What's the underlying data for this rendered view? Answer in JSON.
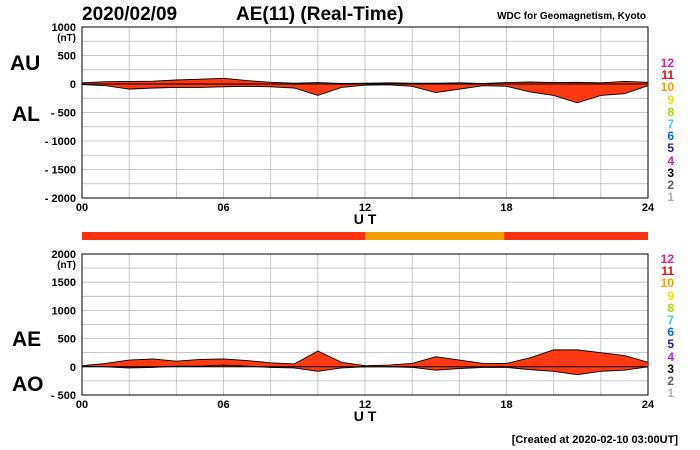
{
  "header": {
    "date": "2020/02/09",
    "title": "AE(11) (Real-Time)",
    "source": "WDC for Geomagnetism, Kyoto"
  },
  "footer": {
    "created": "[Created at 2020-02-10 03:00UT]"
  },
  "activity_levels": {
    "labels": [
      "12",
      "11",
      "10",
      "9",
      "8",
      "7",
      "6",
      "5",
      "4",
      "3",
      "2",
      "1"
    ],
    "colors": [
      "#e01fa0",
      "#e01010",
      "#f5a000",
      "#f0e000",
      "#a0e000",
      "#40d0e0",
      "#1060ff",
      "#2020a0",
      "#c020d0",
      "#000000",
      "#606060",
      "#b0b0b0"
    ]
  },
  "coverage_bar": {
    "segments": [
      {
        "from": 0,
        "to": 12,
        "color": "#ff3010"
      },
      {
        "from": 12,
        "to": 17.9,
        "color": "#f5a000"
      },
      {
        "from": 17.9,
        "to": 24,
        "color": "#ff3010"
      }
    ]
  },
  "chart_data": [
    {
      "type": "area",
      "xlabel": "U T",
      "ylabel": "(nT)",
      "side_labels": [
        "AU",
        "AL"
      ],
      "xlim": [
        0,
        24
      ],
      "ylim": [
        -2000,
        1000
      ],
      "xticks": [
        "00",
        "06",
        "12",
        "18",
        "24"
      ],
      "yticks": [
        "1000",
        "500",
        "0",
        "- 500",
        "- 1000",
        "- 1500",
        "- 2000"
      ],
      "grid": true,
      "series": [
        {
          "name": "AU",
          "x": [
            0,
            1,
            2,
            3,
            4,
            5,
            6,
            7,
            8,
            9,
            10,
            11,
            12,
            13,
            14,
            15,
            16,
            17,
            18,
            19,
            20,
            21,
            22,
            23,
            24
          ],
          "values": [
            20,
            40,
            45,
            50,
            70,
            85,
            100,
            60,
            30,
            15,
            25,
            10,
            15,
            20,
            15,
            15,
            20,
            10,
            25,
            35,
            25,
            30,
            20,
            45,
            30
          ]
        },
        {
          "name": "AL",
          "x": [
            0,
            1,
            2,
            3,
            4,
            5,
            6,
            7,
            8,
            9,
            10,
            11,
            12,
            13,
            14,
            15,
            16,
            17,
            18,
            19,
            20,
            21,
            22,
            23,
            24
          ],
          "values": [
            -10,
            -30,
            -90,
            -70,
            -60,
            -60,
            -50,
            -40,
            -50,
            -70,
            -200,
            -60,
            -20,
            -15,
            -40,
            -150,
            -90,
            -30,
            -40,
            -140,
            -200,
            -330,
            -200,
            -170,
            -30
          ]
        }
      ]
    },
    {
      "type": "area",
      "xlabel": "U T",
      "ylabel": "(nT)",
      "side_labels": [
        "AE",
        "AO"
      ],
      "xlim": [
        0,
        24
      ],
      "ylim": [
        -500,
        2000
      ],
      "xticks": [
        "00",
        "06",
        "12",
        "18",
        "24"
      ],
      "yticks": [
        "2000",
        "1500",
        "1000",
        "500",
        "0",
        "- 500"
      ],
      "grid": true,
      "series": [
        {
          "name": "AE",
          "x": [
            0,
            1,
            2,
            3,
            4,
            5,
            6,
            7,
            8,
            9,
            10,
            11,
            12,
            13,
            14,
            15,
            16,
            17,
            18,
            19,
            20,
            21,
            22,
            23,
            24
          ],
          "values": [
            20,
            60,
            120,
            140,
            100,
            130,
            140,
            110,
            70,
            50,
            280,
            80,
            20,
            30,
            60,
            180,
            120,
            60,
            60,
            160,
            300,
            300,
            250,
            200,
            80
          ]
        },
        {
          "name": "AO",
          "x": [
            0,
            1,
            2,
            3,
            4,
            5,
            6,
            7,
            8,
            9,
            10,
            11,
            12,
            13,
            14,
            15,
            16,
            17,
            18,
            19,
            20,
            21,
            22,
            23,
            24
          ],
          "values": [
            10,
            0,
            -20,
            -10,
            10,
            10,
            30,
            10,
            -10,
            -20,
            -80,
            -20,
            0,
            0,
            -10,
            -60,
            -30,
            -10,
            -10,
            -50,
            -80,
            -140,
            -80,
            -60,
            0
          ]
        }
      ]
    }
  ]
}
